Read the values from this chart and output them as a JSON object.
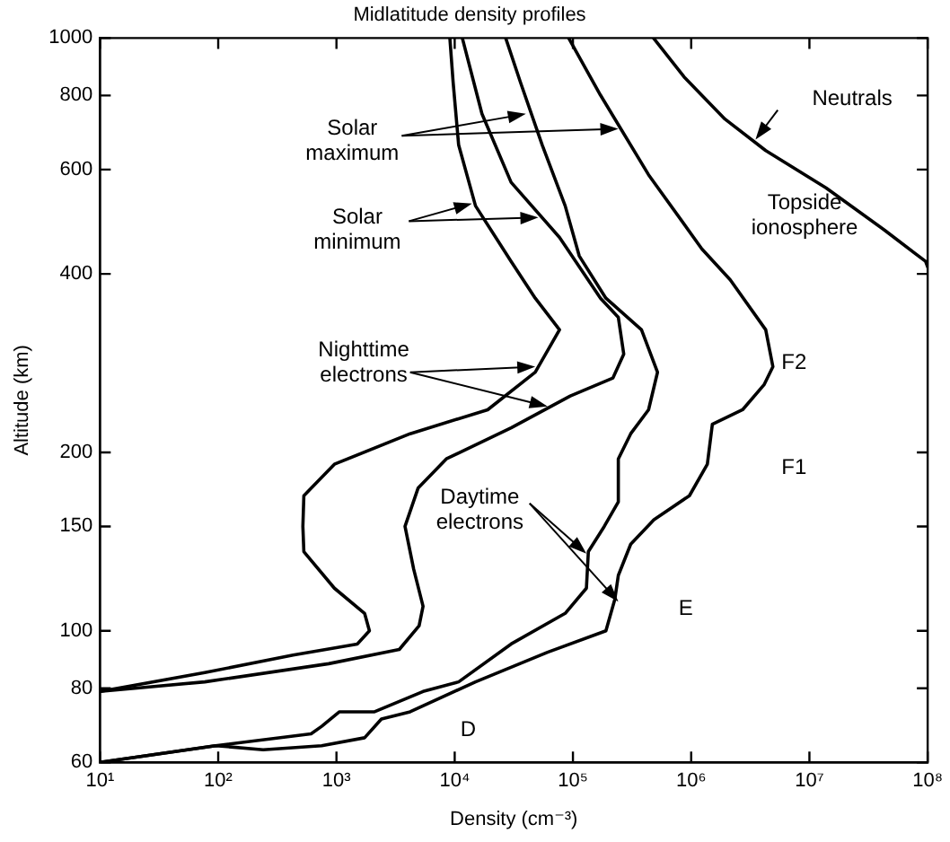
{
  "chart_data": {
    "type": "line",
    "title": "Midlatitude density profiles",
    "xlabel": "Density (cm⁻³)",
    "ylabel": "Altitude (km)",
    "log": "xy",
    "grid": false,
    "legend": false,
    "marker": "none",
    "line_style": "solid",
    "xlim": [
      10,
      100000000
    ],
    "ylim": [
      60,
      1000
    ],
    "xticks": [
      {
        "value": 10,
        "label": "10¹"
      },
      {
        "value": 100,
        "label": "10²"
      },
      {
        "value": 1000,
        "label": "10³"
      },
      {
        "value": 10000,
        "label": "10⁴"
      },
      {
        "value": 100000,
        "label": "10⁵"
      },
      {
        "value": 1000000,
        "label": "10⁶"
      },
      {
        "value": 10000000,
        "label": "10⁷"
      },
      {
        "value": 100000000,
        "label": "10⁸"
      }
    ],
    "yticks": [
      60,
      80,
      100,
      150,
      200,
      400,
      600,
      800,
      1000
    ],
    "series": [
      {
        "color": "#000000",
        "x": [
          9100,
          9700,
          10800,
          15000,
          30000,
          48000,
          77000,
          48000,
          19000,
          4200,
          960,
          530,
          520,
          530,
          960,
          1730,
          1900,
          1500,
          430,
          77,
          10
        ],
        "values": [
          1000,
          842,
          660,
          521,
          420,
          364,
          322,
          273,
          236,
          215,
          191,
          169,
          150,
          136,
          118,
          107,
          100,
          95,
          91,
          85,
          79
        ]
      },
      {
        "color": "#000000",
        "x": [
          11600,
          17000,
          30000,
          77000,
          171000,
          242000,
          269000,
          218000,
          95000,
          30000,
          8500,
          4900,
          3800,
          4500,
          5400,
          5000,
          3400,
          860,
          77,
          10
        ],
        "values": [
          1000,
          745,
          571,
          461,
          364,
          338,
          293,
          267,
          249,
          220,
          195,
          174,
          150,
          127,
          110,
          102,
          93,
          88,
          82,
          79
        ]
      },
      {
        "color": "#000000",
        "x": [
          27000,
          36000,
          55000,
          86000,
          113000,
          190000,
          380000,
          519000,
          436000,
          308000,
          242000,
          242000,
          184000,
          135000,
          130000,
          86000,
          30000,
          10800,
          5400,
          2100,
          1060,
          750,
          610,
          95,
          10
        ],
        "values": [
          1000,
          842,
          660,
          521,
          429,
          364,
          322,
          273,
          236,
          215,
          195,
          165,
          150,
          136,
          118,
          107,
          95,
          82,
          79,
          73,
          73,
          69,
          67,
          64,
          60
        ]
      },
      {
        "color": "#000000",
        "x": [
          92000,
          171000,
          436000,
          1230000,
          2140000,
          4270000,
          4910000,
          4130000,
          2720000,
          1510000,
          1370000,
          966000,
          484000,
          308000,
          242000,
          226000,
          190000,
          61000,
          15000,
          4200,
          2400,
          1730,
          750,
          240,
          95,
          10
        ],
        "values": [
          1000,
          801,
          588,
          441,
          391,
          322,
          279,
          260,
          236,
          223,
          191,
          169,
          154,
          140,
          124,
          113,
          100,
          92,
          82,
          73,
          71,
          66,
          64,
          63,
          64,
          60
        ]
      },
      {
        "color": "#000000",
        "x": [
          480000,
          871000,
          1930000,
          4270000,
          13800000,
          43300000,
          96000000,
          100000000
        ],
        "values": [
          1000,
          860,
          730,
          646,
          559,
          474,
          420,
          411
        ]
      }
    ],
    "annotations": [
      {
        "text": "Solar maximum",
        "x": 40000,
        "y": 745
      },
      {
        "text": "Solar minimum",
        "x": 14000,
        "y": 526
      },
      {
        "text": "Nighttime electrons",
        "x": 48000,
        "y": 279
      },
      {
        "text": "Daytime electrons",
        "x": 130000,
        "y": 135
      },
      {
        "text": "Neutrals",
        "x": 3500000,
        "y": 674
      },
      "Topside ionosphere",
      "F2",
      "F1",
      "E",
      "D"
    ]
  }
}
